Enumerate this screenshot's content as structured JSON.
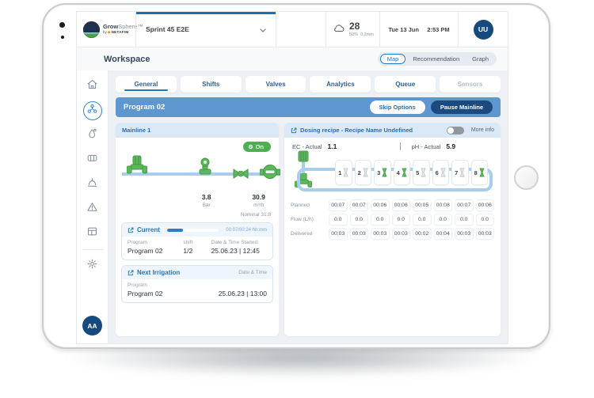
{
  "topbar": {
    "brand": {
      "bold": "Grow",
      "light": "Sphere™",
      "by": "by",
      "sub": "NETAFIM"
    },
    "farm_selector": {
      "value": "Sprint 45 E2E"
    },
    "weather": {
      "temp": "28",
      "humidity": "50%",
      "rain": "0.2mm"
    },
    "date": "Tue 13 Jun",
    "time": "2:53 PM",
    "avatar": "UU"
  },
  "workspace": {
    "title": "Workspace",
    "view_toggle": [
      {
        "label": "Map",
        "active": true
      },
      {
        "label": "Recommendation",
        "active": false
      },
      {
        "label": "Graph",
        "active": false
      }
    ]
  },
  "sidebar": {
    "items": [
      {
        "id": "home",
        "icon": "home-icon",
        "active": false
      },
      {
        "id": "irrigation",
        "icon": "irrigation-network-icon",
        "active": true
      },
      {
        "id": "dosing",
        "icon": "dosing-drop-icon",
        "active": false
      },
      {
        "id": "fertilizer",
        "icon": "fertilizer-tank-icon",
        "active": false
      },
      {
        "id": "valves",
        "icon": "valve-tree-icon",
        "active": false
      },
      {
        "id": "alerts",
        "icon": "alert-triangle-icon",
        "active": false
      },
      {
        "id": "dashboard",
        "icon": "dashboard-grid-icon",
        "active": false
      },
      {
        "id": "settings",
        "icon": "settings-gear-icon",
        "active": false,
        "divider_above": true
      }
    ],
    "avatar": "AA"
  },
  "tabs": [
    {
      "label": "General",
      "active": true,
      "disabled": false
    },
    {
      "label": "Shifts",
      "active": false,
      "disabled": false
    },
    {
      "label": "Valves",
      "active": false,
      "disabled": false
    },
    {
      "label": "Analytics",
      "active": false,
      "disabled": false
    },
    {
      "label": "Queue",
      "active": false,
      "disabled": false
    },
    {
      "label": "Sensors",
      "active": false,
      "disabled": true
    }
  ],
  "program_bar": {
    "title": "Program 02",
    "skip_label": "Skip Options",
    "pause_label": "Pause Mainline"
  },
  "mainline": {
    "title": "Mainline 1",
    "status_label": "On",
    "pressure": {
      "value": "3.8",
      "unit": "Bar"
    },
    "flow": {
      "value": "30.9",
      "unit": "m³/h"
    },
    "nominal": "Nominal 31.8"
  },
  "current": {
    "title": "Current",
    "progress_pct": 30,
    "progress_text": "00:07/00:24 hh:mm",
    "program_label": "Program",
    "program": "Program 02",
    "shift_label": "shift",
    "shift": "1/2",
    "started_label": "Date & Time Started",
    "started": "25.06.23 | 12:45"
  },
  "next_irrigation": {
    "title": "Next Irrigation",
    "datetime_label": "Date & Time",
    "program_label": "Program",
    "program": "Program 02",
    "datetime": "25.06.23 | 13:00"
  },
  "dosing": {
    "title": "Dosing recipe - Recipe Name Undefined",
    "toggle_on": false,
    "more_info_label": "More info",
    "ec_label": "EC - Actual",
    "ec_value": "1.1",
    "ph_label": "pH - Actual",
    "ph_value": "5.9",
    "valves": [
      {
        "number": "1",
        "active": false
      },
      {
        "number": "2",
        "active": false
      },
      {
        "number": "3",
        "active": true
      },
      {
        "number": "4",
        "active": true
      },
      {
        "number": "5",
        "active": false
      },
      {
        "number": "6",
        "active": false
      },
      {
        "number": "7",
        "active": false
      },
      {
        "number": "8",
        "active": true
      }
    ],
    "table": [
      {
        "label": "Planned",
        "values": [
          "00:07",
          "00:07",
          "00:06",
          "00:06",
          "00:05",
          "00:08",
          "00:07",
          "00:06"
        ]
      },
      {
        "label": "Flow (L/h)",
        "values": [
          "0.0",
          "0.0",
          "0.0",
          "0.0",
          "0.0",
          "0.0",
          "0.0",
          "0.0"
        ]
      },
      {
        "label": "Delivered",
        "values": [
          "00:03",
          "00:03",
          "00:03",
          "00:03",
          "00:02",
          "00:04",
          "00:03",
          "00:03"
        ]
      }
    ]
  },
  "colors": {
    "accent_blue": "#2176bd",
    "program_bar_blue": "#5e97d0",
    "dark_navy": "#1b4a80",
    "status_green": "#4cb050",
    "pipe_blue": "#a9cdec",
    "panel_head_blue": "#dbe9f7"
  }
}
